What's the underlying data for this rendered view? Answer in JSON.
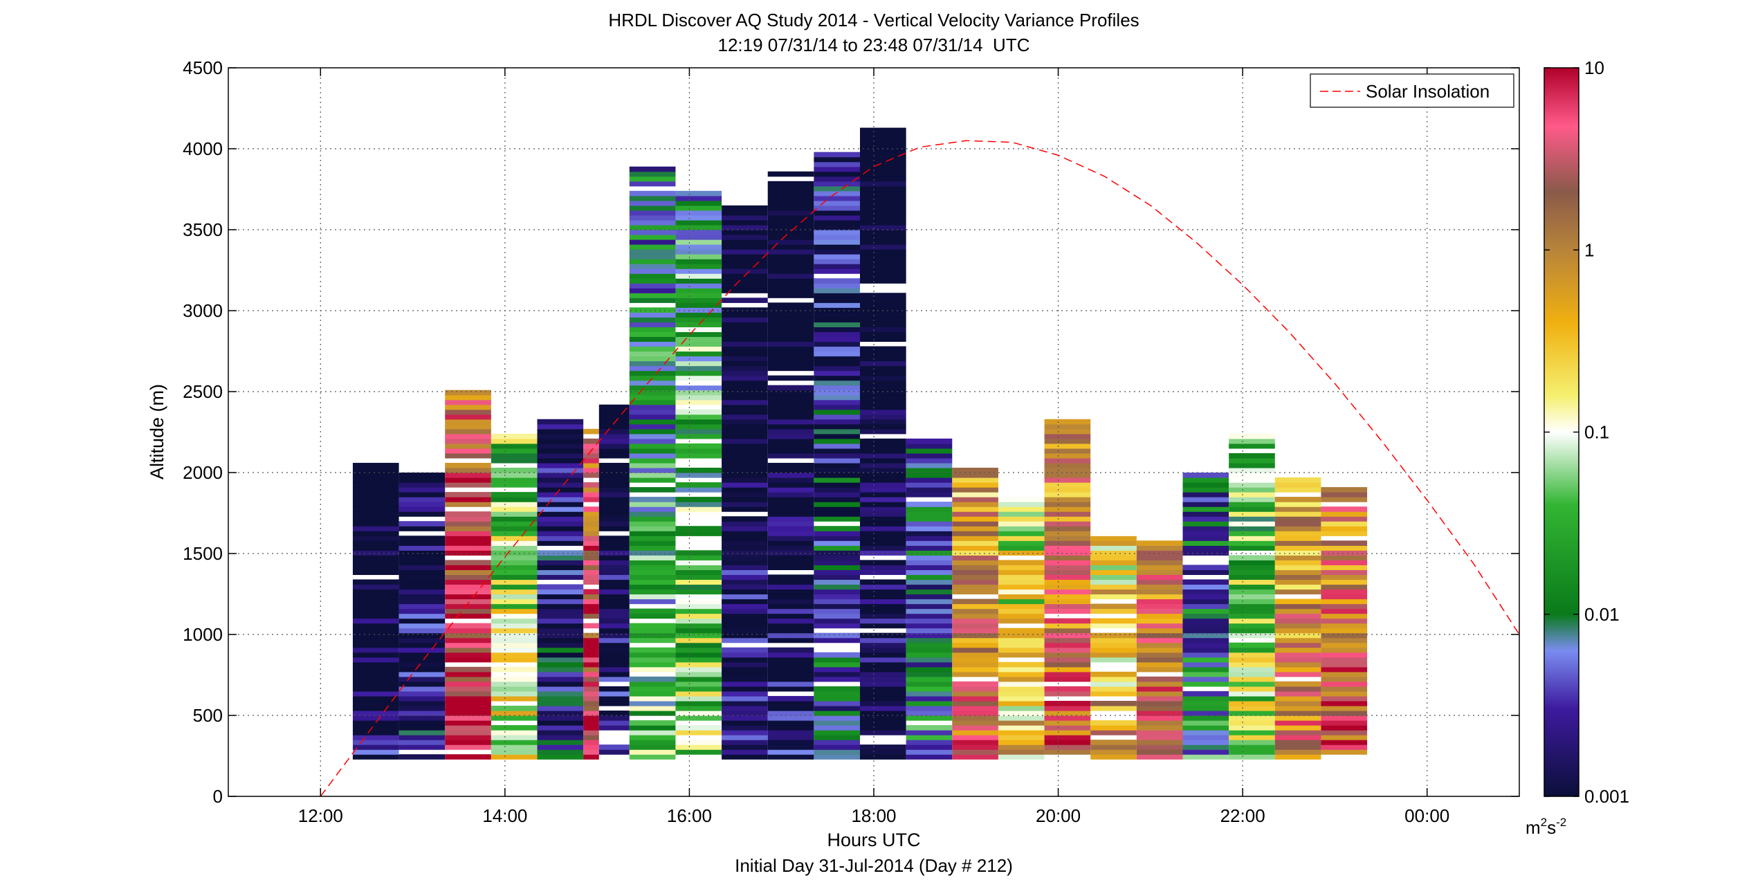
{
  "chart_data": {
    "type": "heatmap",
    "title": "HRDL Discover AQ Study 2014 - Vertical Velocity Variance Profiles",
    "subtitle": "12:19 07/31/14 to 23:48 07/31/14  UTC",
    "xlabel": "Hours UTC",
    "xlabel2": "Initial Day 31-Jul-2014 (Day # 212)",
    "ylabel": "Altitude (m)",
    "xlim": [
      11.0,
      25.0
    ],
    "ylim": [
      0,
      4500
    ],
    "x_ticks": [
      12,
      14,
      16,
      18,
      20,
      22,
      24
    ],
    "x_tick_labels": [
      "12:00",
      "14:00",
      "16:00",
      "18:00",
      "20:00",
      "22:00",
      "00:00"
    ],
    "y_ticks": [
      0,
      500,
      1000,
      1500,
      2000,
      2500,
      3000,
      3500,
      4000,
      4500
    ],
    "y_tick_labels": [
      "0",
      "500",
      "1000",
      "1500",
      "2000",
      "2500",
      "3000",
      "3500",
      "4000",
      "4500"
    ],
    "grid": true,
    "legend_position": "top-right",
    "legend": {
      "label": "Solar Insolation",
      "color": "#ff0000",
      "style": "dashed"
    },
    "colorbar": {
      "scale": "log",
      "range": [
        0.001,
        10
      ],
      "tick_labels": [
        "0.001",
        "0.01",
        "0.1",
        "1",
        "10"
      ],
      "unit_base": "m",
      "unit_exp1": "2",
      "unit_mid": "s",
      "unit_exp2": "-2"
    },
    "profiles": [
      {
        "x0": 12.35,
        "x1": 12.85,
        "top": 2060,
        "bottom": 230,
        "base_log": -2.9
      },
      {
        "x0": 12.85,
        "x1": 13.35,
        "top": 2000,
        "bottom": 230,
        "base_log": -2.6
      },
      {
        "x0": 13.35,
        "x1": 13.85,
        "top": 2510,
        "bottom": 230,
        "base_log": 0.95
      },
      {
        "x0": 13.85,
        "x1": 14.35,
        "top": 2220,
        "bottom": 230,
        "base_log": -0.8
      },
      {
        "x0": 14.35,
        "x1": 14.85,
        "top": 2330,
        "bottom": 230,
        "base_log": -2.4
      },
      {
        "x0": 14.85,
        "x1": 15.02,
        "top": 2270,
        "bottom": 230,
        "base_log": 0.9
      },
      {
        "x0": 15.02,
        "x1": 15.35,
        "top": 2420,
        "bottom": 230,
        "base_log": -2.7
      },
      {
        "x0": 15.35,
        "x1": 15.85,
        "top": 3880,
        "bottom": 230,
        "base_log": -1.5
      },
      {
        "x0": 15.85,
        "x1": 16.35,
        "top": 3740,
        "bottom": 230,
        "base_log": -1.2
      },
      {
        "x0": 16.35,
        "x1": 16.85,
        "top": 3640,
        "bottom": 230,
        "base_log": -2.8
      },
      {
        "x0": 16.85,
        "x1": 17.35,
        "top": 3860,
        "bottom": 230,
        "base_log": -2.9
      },
      {
        "x0": 17.35,
        "x1": 17.85,
        "top": 3990,
        "bottom": 230,
        "base_log": -2.2
      },
      {
        "x0": 17.85,
        "x1": 18.35,
        "top": 4110,
        "bottom": 230,
        "base_log": -2.95
      },
      {
        "x0": 18.35,
        "x1": 18.85,
        "top": 2240,
        "bottom": 230,
        "base_log": -1.9
      },
      {
        "x0": 18.85,
        "x1": 19.35,
        "top": 2030,
        "bottom": 230,
        "base_log": 0.3
      },
      {
        "x0": 19.35,
        "x1": 19.85,
        "top": 1850,
        "bottom": 230,
        "base_log": -0.5
      },
      {
        "x0": 19.85,
        "x1": 20.35,
        "top": 2330,
        "bottom": 230,
        "base_log": 0.4
      },
      {
        "x0": 20.35,
        "x1": 20.85,
        "top": 1620,
        "bottom": 230,
        "base_log": -0.2
      },
      {
        "x0": 20.85,
        "x1": 21.35,
        "top": 1560,
        "bottom": 230,
        "base_log": 0.6
      },
      {
        "x0": 21.35,
        "x1": 21.85,
        "top": 2000,
        "bottom": 230,
        "base_log": -1.8
      },
      {
        "x0": 21.85,
        "x1": 22.35,
        "top": 2240,
        "bottom": 230,
        "base_log": -1.0
      },
      {
        "x0": 22.35,
        "x1": 22.85,
        "top": 1960,
        "bottom": 230,
        "base_log": 0.2
      },
      {
        "x0": 22.85,
        "x1": 23.35,
        "top": 1900,
        "bottom": 260,
        "base_log": 0.5
      }
    ],
    "solar_insolation": {
      "x": [
        12.0,
        12.5,
        13.0,
        13.5,
        14.0,
        14.5,
        15.0,
        15.5,
        16.0,
        16.5,
        17.0,
        17.5,
        18.0,
        18.5,
        19.0,
        19.5,
        20.0,
        20.5,
        21.0,
        21.5,
        22.0,
        22.5,
        23.0,
        23.5,
        24.0,
        24.5,
        25.0
      ],
      "y": [
        0,
        380,
        760,
        1120,
        1480,
        1830,
        2180,
        2520,
        2850,
        3160,
        3440,
        3690,
        3890,
        4010,
        4050,
        4040,
        3960,
        3830,
        3650,
        3420,
        3160,
        2870,
        2550,
        2200,
        1830,
        1440,
        1000
      ]
    }
  }
}
